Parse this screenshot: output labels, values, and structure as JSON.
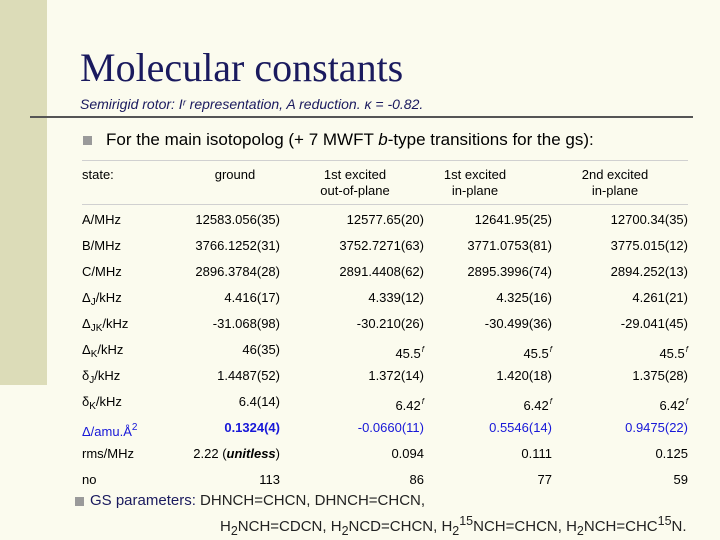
{
  "title": "Molecular constants",
  "subtitle": "Semirigid rotor: Iʳ representation, A reduction. κ = -0.82.",
  "bullet1": {
    "prefix": "For the main isotopolog (+ 7 MWFT ",
    "italic": "b",
    "suffix": "-type transitions for the gs):"
  },
  "table": {
    "header": [
      "state:",
      "ground",
      "1st excited\nout-of-plane",
      "1st excited\nin-plane",
      "2nd excited\nin-plane"
    ],
    "rows": [
      {
        "label": "A/MHz",
        "values": [
          "12583.056(35)",
          "12577.65(20)",
          "12641.95(25)",
          "12700.34(35)"
        ]
      },
      {
        "label": "B/MHz",
        "values": [
          "3766.1252(31)",
          "3752.7271(63)",
          "3771.0753(81)",
          "3775.015(12)"
        ]
      },
      {
        "label": "C/MHz",
        "values": [
          "2896.3784(28)",
          "2891.4408(62)",
          "2895.3996(74)",
          "2894.252(13)"
        ]
      },
      {
        "label": "ΔJ/kHz",
        "values": [
          "4.416(17)",
          "4.339(12)",
          "4.325(16)",
          "4.261(21)"
        ]
      },
      {
        "label": "ΔJK/kHz",
        "values": [
          "-31.068(98)",
          "-30.210(26)",
          "-30.499(36)",
          "-29.041(45)"
        ]
      },
      {
        "label": "ΔK/kHz",
        "values": [
          "46(35)",
          "45.5",
          "45.5",
          "45.5"
        ],
        "fixed_marker": "f"
      },
      {
        "label": "δJ/kHz",
        "values": [
          "1.4487(52)",
          "1.372(14)",
          "1.420(18)",
          "1.375(28)"
        ]
      },
      {
        "label": "δK/kHz",
        "values": [
          "6.4(14)",
          "6.42",
          "6.42",
          "6.42"
        ],
        "fixed_marker": "f"
      },
      {
        "label": "Δ/amu.Å2",
        "values": [
          "0.1324(4)",
          "-0.0660(11)",
          "0.5546(14)",
          "0.9475(22)"
        ],
        "highlight_color": "#1717d8"
      },
      {
        "label": "rms/MHz",
        "values": [
          "2.22 (unitless)",
          "0.094",
          "0.111",
          "0.125"
        ]
      },
      {
        "label": "no",
        "values": [
          "113",
          "86",
          "77",
          "59"
        ]
      }
    ]
  },
  "bullet2": {
    "label": "GS parameters:",
    "line1": "DHNCH=CHCN, DHNCH=CHCN,",
    "line2": "H2NCH=CDCN, H2NCD=CHCN, H215NCH=CHCN, H2NCH=CHC15N."
  },
  "colors": {
    "background": "#fbfbee",
    "left_bar": "#dcdcb8",
    "title": "#1a1a5e",
    "bullet": "#9a9a9a"
  }
}
